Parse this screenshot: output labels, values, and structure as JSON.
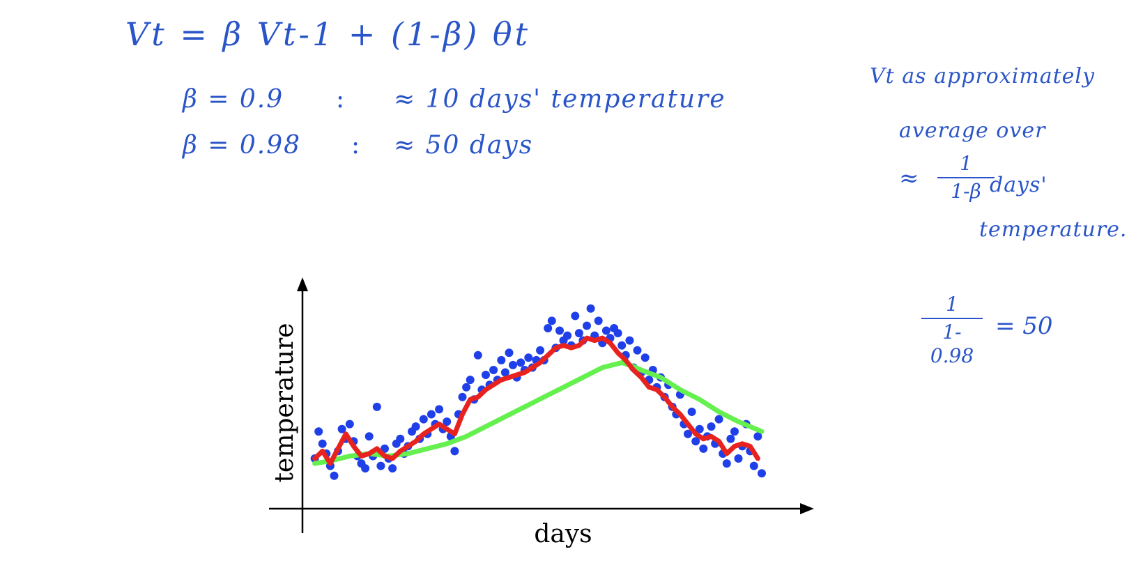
{
  "annotations": {
    "main_equation": "Vt = β Vt-1  +  (1-β) θt",
    "beta1": "β = 0.9",
    "note1": "≈ 10 days' temperature",
    "beta2": "β = 0.98",
    "note2": "≈ 50 days",
    "side1": "Vt as approximately",
    "side2": "average over",
    "approx": "≈",
    "frac1_num": "1",
    "frac1_den": "1-β",
    "side3": "days'",
    "side4": "temperature.",
    "frac2_num": "1",
    "frac2_den": "1-0.98",
    "frac2_result": "= 50"
  },
  "chart_data": {
    "type": "scatter",
    "xlabel": "days",
    "ylabel": "temperature",
    "colors": {
      "points": "#1f3fe8",
      "beta_09": "#e8231f",
      "beta_098": "#66f050",
      "ink": "#2a55c8"
    },
    "series": [
      {
        "type": "scatter",
        "values": [
          [
            1,
            12
          ],
          [
            2,
            23
          ],
          [
            3,
            18
          ],
          [
            4,
            14
          ],
          [
            5,
            9
          ],
          [
            6,
            5
          ],
          [
            7,
            15
          ],
          [
            8,
            24
          ],
          [
            9,
            20
          ],
          [
            10,
            26
          ],
          [
            11,
            19
          ],
          [
            12,
            13
          ],
          [
            13,
            10
          ],
          [
            14,
            8
          ],
          [
            15,
            21
          ],
          [
            16,
            13
          ],
          [
            17,
            33
          ],
          [
            18,
            9
          ],
          [
            19,
            16
          ],
          [
            20,
            12
          ],
          [
            21,
            8
          ],
          [
            22,
            18
          ],
          [
            23,
            20
          ],
          [
            24,
            14
          ],
          [
            25,
            17
          ],
          [
            26,
            23
          ],
          [
            27,
            25
          ],
          [
            28,
            20
          ],
          [
            29,
            28
          ],
          [
            30,
            22
          ],
          [
            31,
            30
          ],
          [
            32,
            26
          ],
          [
            33,
            32
          ],
          [
            34,
            24
          ],
          [
            35,
            27
          ],
          [
            36,
            21
          ],
          [
            37,
            15
          ],
          [
            38,
            30
          ],
          [
            39,
            37
          ],
          [
            40,
            41
          ],
          [
            41,
            44
          ],
          [
            42,
            36
          ],
          [
            43,
            54
          ],
          [
            44,
            40
          ],
          [
            45,
            46
          ],
          [
            46,
            42
          ],
          [
            47,
            48
          ],
          [
            48,
            44
          ],
          [
            49,
            52
          ],
          [
            50,
            47
          ],
          [
            51,
            55
          ],
          [
            52,
            50
          ],
          [
            53,
            45
          ],
          [
            54,
            51
          ],
          [
            55,
            48
          ],
          [
            56,
            53
          ],
          [
            57,
            49
          ],
          [
            58,
            52
          ],
          [
            59,
            56
          ],
          [
            60,
            52
          ],
          [
            61,
            65
          ],
          [
            62,
            68
          ],
          [
            63,
            57
          ],
          [
            64,
            64
          ],
          [
            65,
            60
          ],
          [
            66,
            62
          ],
          [
            67,
            58
          ],
          [
            68,
            70
          ],
          [
            69,
            63
          ],
          [
            70,
            60
          ],
          [
            71,
            66
          ],
          [
            72,
            73
          ],
          [
            73,
            62
          ],
          [
            74,
            68
          ],
          [
            75,
            59
          ],
          [
            76,
            64
          ],
          [
            77,
            61
          ],
          [
            78,
            65
          ],
          [
            79,
            63
          ],
          [
            80,
            58
          ],
          [
            81,
            54
          ],
          [
            82,
            60
          ],
          [
            83,
            49
          ],
          [
            84,
            56
          ],
          [
            85,
            47
          ],
          [
            86,
            53
          ],
          [
            87,
            44
          ],
          [
            88,
            48
          ],
          [
            89,
            41
          ],
          [
            90,
            45
          ],
          [
            91,
            37
          ],
          [
            92,
            42
          ],
          [
            93,
            33
          ],
          [
            94,
            30
          ],
          [
            95,
            38
          ],
          [
            96,
            26
          ],
          [
            97,
            22
          ],
          [
            98,
            31
          ],
          [
            99,
            19
          ],
          [
            100,
            24
          ],
          [
            101,
            16
          ],
          [
            102,
            21
          ],
          [
            103,
            25
          ],
          [
            104,
            18
          ],
          [
            105,
            28
          ],
          [
            106,
            14
          ],
          [
            107,
            10
          ],
          [
            108,
            20
          ],
          [
            109,
            23
          ],
          [
            110,
            12
          ],
          [
            111,
            17
          ],
          [
            112,
            26
          ],
          [
            113,
            15
          ],
          [
            114,
            9
          ],
          [
            115,
            21
          ],
          [
            116,
            6
          ]
        ]
      },
      {
        "name": "β = 0.9",
        "type": "line",
        "values": [
          [
            1,
            12
          ],
          [
            3,
            15
          ],
          [
            5,
            10
          ],
          [
            7,
            16
          ],
          [
            9,
            22
          ],
          [
            11,
            17
          ],
          [
            13,
            13
          ],
          [
            15,
            14
          ],
          [
            17,
            16
          ],
          [
            19,
            13
          ],
          [
            21,
            12
          ],
          [
            23,
            15
          ],
          [
            25,
            17
          ],
          [
            27,
            19
          ],
          [
            29,
            22
          ],
          [
            31,
            24
          ],
          [
            33,
            26
          ],
          [
            35,
            24
          ],
          [
            37,
            22
          ],
          [
            39,
            30
          ],
          [
            41,
            36
          ],
          [
            43,
            37
          ],
          [
            45,
            40
          ],
          [
            47,
            42
          ],
          [
            49,
            44
          ],
          [
            51,
            45
          ],
          [
            53,
            46
          ],
          [
            55,
            47
          ],
          [
            57,
            49
          ],
          [
            59,
            51
          ],
          [
            61,
            54
          ],
          [
            63,
            57
          ],
          [
            65,
            58
          ],
          [
            67,
            57
          ],
          [
            69,
            58
          ],
          [
            71,
            61
          ],
          [
            73,
            60
          ],
          [
            75,
            61
          ],
          [
            77,
            59
          ],
          [
            79,
            55
          ],
          [
            81,
            52
          ],
          [
            83,
            48
          ],
          [
            85,
            45
          ],
          [
            87,
            41
          ],
          [
            89,
            40
          ],
          [
            91,
            37
          ],
          [
            93,
            33
          ],
          [
            95,
            30
          ],
          [
            97,
            26
          ],
          [
            99,
            22
          ],
          [
            101,
            20
          ],
          [
            103,
            21
          ],
          [
            105,
            19
          ],
          [
            107,
            14
          ],
          [
            109,
            17
          ],
          [
            111,
            18
          ],
          [
            113,
            17
          ],
          [
            115,
            12
          ]
        ]
      },
      {
        "name": "β = 0.98",
        "type": "line",
        "values": [
          [
            1,
            10
          ],
          [
            5,
            11
          ],
          [
            10,
            13
          ],
          [
            15,
            14
          ],
          [
            20,
            13
          ],
          [
            25,
            14
          ],
          [
            30,
            16
          ],
          [
            35,
            18
          ],
          [
            40,
            21
          ],
          [
            45,
            25
          ],
          [
            50,
            29
          ],
          [
            55,
            33
          ],
          [
            60,
            37
          ],
          [
            65,
            41
          ],
          [
            70,
            45
          ],
          [
            75,
            49
          ],
          [
            80,
            51
          ],
          [
            82,
            50
          ],
          [
            85,
            48
          ],
          [
            90,
            45
          ],
          [
            95,
            40
          ],
          [
            100,
            36
          ],
          [
            105,
            31
          ],
          [
            110,
            27
          ],
          [
            116,
            23
          ]
        ]
      }
    ],
    "xlim": [
      0,
      125
    ],
    "ylim": [
      -5,
      80
    ],
    "grid": false
  }
}
